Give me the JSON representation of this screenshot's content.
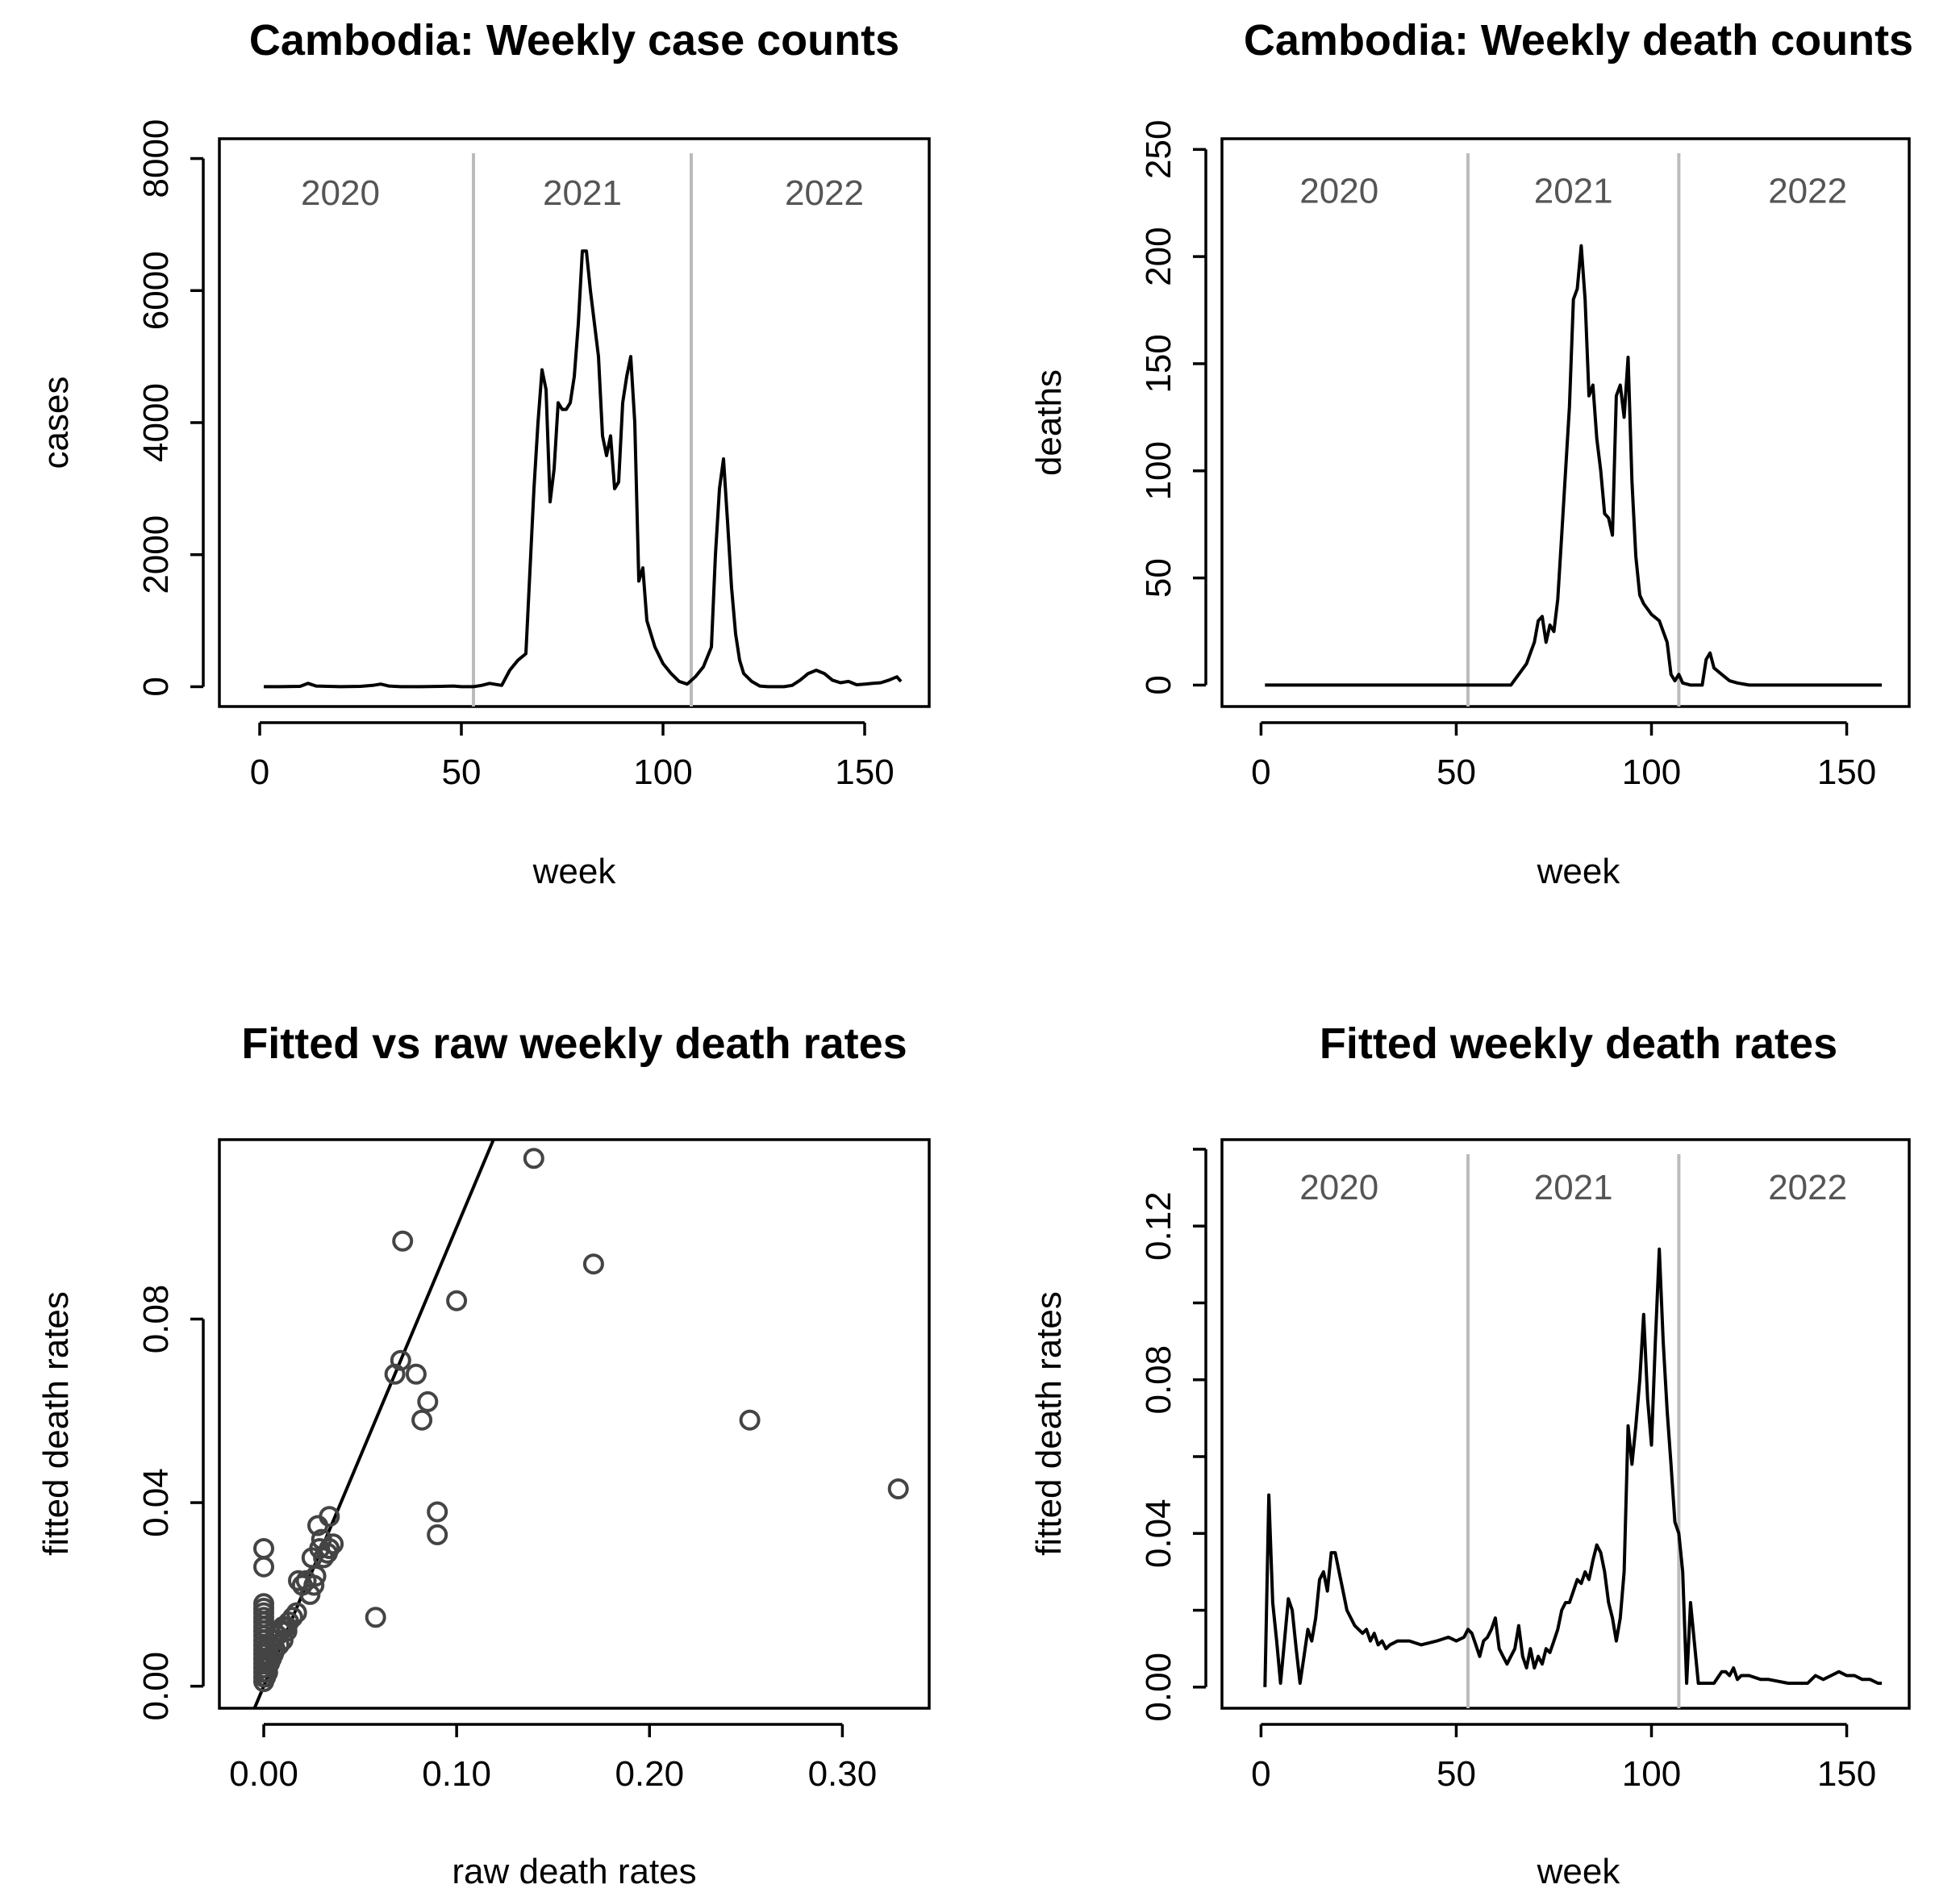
{
  "chart_data": [
    {
      "id": "cases",
      "type": "line",
      "title": "Cambodia: Weekly case counts",
      "xlabel": "week",
      "ylabel": "cases",
      "xlim": [
        -10,
        166
      ],
      "ylim": [
        -300,
        8300
      ],
      "xticks": [
        0,
        50,
        100,
        150
      ],
      "xtick_labels": [
        "0",
        "50",
        "100",
        "150"
      ],
      "yticks": [
        0,
        2000,
        4000,
        6000,
        8000
      ],
      "ytick_labels": [
        "0",
        "2000",
        "4000",
        "6000",
        "8000"
      ],
      "vlines": [
        53,
        107
      ],
      "year_labels": [
        {
          "text": "2020",
          "x": 20
        },
        {
          "text": "2021",
          "x": 80
        },
        {
          "text": "2022",
          "x": 140
        }
      ],
      "year_label_y": 7300,
      "series": [
        {
          "name": "cases",
          "x": [
            1,
            5,
            10,
            12,
            14,
            20,
            25,
            28,
            30,
            32,
            35,
            40,
            45,
            48,
            50,
            53,
            55,
            57,
            60,
            62,
            64,
            66,
            68,
            69,
            70,
            71,
            72,
            73,
            74,
            75,
            76,
            77,
            78,
            79,
            80,
            81,
            82,
            83,
            84,
            85,
            86,
            87,
            88,
            89,
            90,
            91,
            92,
            93,
            94,
            95,
            96,
            97,
            98,
            100,
            102,
            104,
            106,
            108,
            110,
            112,
            113,
            114,
            115,
            116,
            117,
            118,
            119,
            120,
            122,
            124,
            126,
            128,
            130,
            132,
            134,
            136,
            138,
            140,
            142,
            144,
            146,
            148,
            150,
            152,
            154,
            156,
            158,
            159
          ],
          "values": [
            0,
            0,
            5,
            50,
            10,
            0,
            5,
            20,
            40,
            10,
            0,
            0,
            5,
            10,
            0,
            0,
            20,
            50,
            20,
            250,
            400,
            500,
            3000,
            4000,
            4800,
            4500,
            2800,
            3300,
            4300,
            4200,
            4200,
            4300,
            4700,
            5500,
            6600,
            6600,
            6000,
            5500,
            5000,
            3800,
            3500,
            3800,
            3000,
            3100,
            4300,
            4700,
            5000,
            4000,
            1600,
            1800,
            1000,
            800,
            600,
            350,
            200,
            80,
            40,
            150,
            300,
            600,
            2000,
            3000,
            3450,
            2500,
            1500,
            800,
            400,
            200,
            80,
            10,
            0,
            0,
            0,
            20,
            100,
            200,
            250,
            200,
            100,
            60,
            80,
            30,
            40,
            50,
            60,
            100,
            150,
            80
          ]
        }
      ]
    },
    {
      "id": "deaths",
      "type": "line",
      "title": "Cambodia: Weekly death counts",
      "xlabel": "week",
      "ylabel": "deaths",
      "xlim": [
        -10,
        166
      ],
      "ylim": [
        -10,
        255
      ],
      "xticks": [
        0,
        50,
        100,
        150
      ],
      "xtick_labels": [
        "0",
        "50",
        "100",
        "150"
      ],
      "yticks": [
        0,
        50,
        100,
        150,
        200,
        250
      ],
      "ytick_labels": [
        "0",
        "50",
        "100",
        "150",
        "200",
        "250"
      ],
      "vlines": [
        53,
        107
      ],
      "year_labels": [
        {
          "text": "2020",
          "x": 20
        },
        {
          "text": "2021",
          "x": 80
        },
        {
          "text": "2022",
          "x": 140
        }
      ],
      "year_label_y": 225,
      "series": [
        {
          "name": "deaths",
          "x": [
            1,
            30,
            60,
            64,
            66,
            68,
            69,
            70,
            71,
            72,
            73,
            74,
            75,
            76,
            77,
            78,
            79,
            80,
            81,
            82,
            83,
            84,
            85,
            86,
            87,
            88,
            89,
            90,
            91,
            92,
            93,
            94,
            95,
            96,
            97,
            98,
            100,
            102,
            104,
            105,
            106,
            107,
            108,
            110,
            113,
            114,
            115,
            116,
            118,
            120,
            122,
            125,
            130,
            140,
            159
          ],
          "values": [
            0,
            0,
            0,
            0,
            5,
            10,
            15,
            20,
            30,
            32,
            20,
            28,
            25,
            40,
            70,
            100,
            130,
            180,
            185,
            205,
            180,
            135,
            140,
            115,
            100,
            80,
            78,
            70,
            135,
            140,
            125,
            153,
            95,
            60,
            42,
            38,
            33,
            30,
            20,
            5,
            2,
            5,
            1,
            0,
            0,
            12,
            15,
            8,
            5,
            2,
            1,
            0,
            0,
            0,
            0
          ]
        }
      ]
    },
    {
      "id": "scatter",
      "type": "scatter",
      "title": "Fitted vs raw weekly death rates",
      "xlabel": "raw death rates",
      "ylabel": "fitted death rates",
      "xlim": [
        -0.023,
        0.345
      ],
      "ylim": [
        -0.0048,
        0.1191
      ],
      "xticks": [
        0,
        0.1,
        0.2,
        0.3
      ],
      "xtick_labels": [
        "0.00",
        "0.10",
        "0.20",
        "0.30"
      ],
      "yticks": [
        0,
        0.04,
        0.08
      ],
      "ytick_labels": [
        "0.00",
        "0.04",
        "0.08"
      ],
      "abline": {
        "intercept": 0,
        "slope": 1
      },
      "x": [
        0,
        0,
        0,
        0,
        0,
        0,
        0,
        0,
        0,
        0,
        0,
        0,
        0,
        0,
        0,
        0,
        0,
        0,
        0,
        0,
        0.001,
        0.001,
        0.001,
        0.002,
        0.002,
        0.003,
        0.003,
        0.004,
        0.005,
        0.005,
        0.006,
        0.007,
        0.008,
        0.009,
        0.01,
        0.01,
        0.012,
        0.012,
        0.013,
        0.015,
        0.017,
        0.018,
        0.02,
        0.022,
        0.024,
        0.025,
        0.026,
        0.027,
        0.028,
        0.029,
        0.03,
        0.031,
        0.033,
        0.034,
        0.034,
        0.036,
        0.058,
        0.068,
        0.071,
        0.072,
        0.079,
        0.082,
        0.085,
        0.09,
        0.09,
        0.1,
        0.14,
        0.171,
        0.252,
        0.329
      ],
      "y": [
        0.001,
        0.002,
        0.003,
        0.004,
        0.005,
        0.006,
        0.007,
        0.008,
        0.009,
        0.01,
        0.011,
        0.012,
        0.013,
        0.014,
        0.015,
        0.016,
        0.017,
        0.018,
        0.026,
        0.03,
        0.002,
        0.005,
        0.008,
        0.003,
        0.006,
        0.005,
        0.009,
        0.006,
        0.007,
        0.01,
        0.008,
        0.011,
        0.009,
        0.012,
        0.01,
        0.013,
        0.012,
        0.013,
        0.014,
        0.015,
        0.016,
        0.023,
        0.022,
        0.023,
        0.02,
        0.028,
        0.022,
        0.024,
        0.035,
        0.03,
        0.032,
        0.028,
        0.029,
        0.03,
        0.037,
        0.031,
        0.015,
        0.068,
        0.071,
        0.097,
        0.068,
        0.058,
        0.062,
        0.038,
        0.033,
        0.084,
        0.115,
        0.092,
        0.058,
        0.043
      ]
    },
    {
      "id": "fitted",
      "type": "line",
      "title": "Fitted weekly death rates",
      "xlabel": "week",
      "ylabel": "fitted death rates",
      "xlim": [
        -10,
        166
      ],
      "ylim": [
        -0.0055,
        0.1425
      ],
      "xticks": [
        0,
        50,
        100,
        150
      ],
      "xtick_labels": [
        "0",
        "50",
        "100",
        "150"
      ],
      "yticks": [
        0,
        0.02,
        0.04,
        0.06,
        0.08,
        0.1,
        0.12,
        0.14
      ],
      "ytick_labels": [
        "0.00",
        "",
        "0.04",
        "",
        "0.08",
        "",
        "0.12",
        ""
      ],
      "vlines": [
        53,
        107
      ],
      "year_labels": [
        {
          "text": "2020",
          "x": 20
        },
        {
          "text": "2021",
          "x": 80
        },
        {
          "text": "2022",
          "x": 140
        }
      ],
      "year_label_y": 0.127,
      "series": [
        {
          "name": "fitted death rates",
          "x": [
            1,
            2,
            3,
            4,
            5,
            6,
            7,
            8,
            9,
            10,
            11,
            12,
            13,
            14,
            15,
            16,
            17,
            18,
            19,
            20,
            21,
            22,
            23,
            24,
            25,
            26,
            27,
            28,
            29,
            30,
            31,
            32,
            33,
            35,
            38,
            41,
            45,
            48,
            50,
            52,
            53,
            54,
            55,
            56,
            57,
            58,
            59,
            60,
            61,
            62,
            63,
            64,
            65,
            66,
            67,
            68,
            69,
            70,
            71,
            72,
            73,
            74,
            75,
            76,
            77,
            78,
            79,
            80,
            81,
            82,
            83,
            84,
            85,
            86,
            87,
            88,
            89,
            90,
            91,
            92,
            93,
            94,
            95,
            96,
            97,
            98,
            99,
            100,
            101,
            102,
            103,
            104,
            105,
            106,
            107,
            108,
            109,
            110,
            112,
            114,
            116,
            118,
            119,
            120,
            121,
            122,
            123,
            125,
            128,
            130,
            135,
            140,
            142,
            144,
            146,
            148,
            150,
            152,
            154,
            156,
            158,
            159
          ],
          "values": [
            0,
            0.05,
            0.022,
            0.012,
            0.001,
            0.012,
            0.023,
            0.02,
            0.01,
            0.001,
            0.008,
            0.015,
            0.012,
            0.018,
            0.028,
            0.03,
            0.025,
            0.035,
            0.035,
            0.03,
            0.025,
            0.02,
            0.018,
            0.016,
            0.015,
            0.014,
            0.015,
            0.012,
            0.014,
            0.011,
            0.012,
            0.01,
            0.011,
            0.012,
            0.012,
            0.011,
            0.012,
            0.013,
            0.012,
            0.013,
            0.015,
            0.014,
            0.011,
            0.008,
            0.012,
            0.013,
            0.015,
            0.018,
            0.01,
            0.008,
            0.006,
            0.008,
            0.01,
            0.016,
            0.008,
            0.005,
            0.01,
            0.005,
            0.008,
            0.006,
            0.01,
            0.009,
            0.012,
            0.015,
            0.02,
            0.022,
            0.022,
            0.025,
            0.028,
            0.027,
            0.03,
            0.028,
            0.033,
            0.037,
            0.035,
            0.03,
            0.022,
            0.018,
            0.012,
            0.018,
            0.03,
            0.068,
            0.058,
            0.068,
            0.08,
            0.097,
            0.075,
            0.063,
            0.09,
            0.114,
            0.09,
            0.072,
            0.058,
            0.043,
            0.04,
            0.03,
            0.001,
            0.022,
            0.001,
            0.001,
            0.001,
            0.004,
            0.004,
            0.003,
            0.005,
            0.002,
            0.003,
            0.003,
            0.002,
            0.002,
            0.001,
            0.001,
            0.003,
            0.002,
            0.003,
            0.004,
            0.003,
            0.003,
            0.002,
            0.002,
            0.001,
            0.001
          ]
        }
      ]
    }
  ]
}
